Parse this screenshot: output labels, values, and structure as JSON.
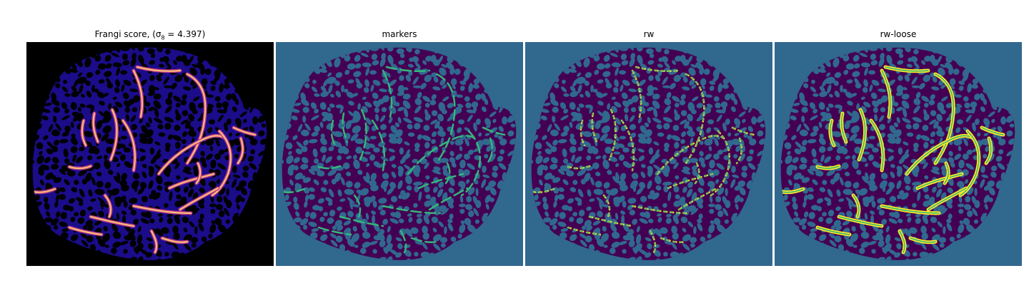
{
  "figure": {
    "panels": [
      {
        "title": "Frangi score, (σ",
        "title_sub": "8",
        "title_tail": " = 4.397)",
        "colormap": "magma"
      },
      {
        "title": "markers",
        "colormap": "viridis"
      },
      {
        "title": "rw",
        "colormap": "viridis"
      },
      {
        "title": "rw-loose",
        "colormap": "viridis"
      }
    ]
  },
  "colors": {
    "magma_background": "#000000",
    "magma_tissue": "#1b0c8a",
    "magma_holes": "#000000",
    "magma_vessel_mid": "#b93a8a",
    "magma_vessel_hot": "#fcc476",
    "viridis_background": "#31688e",
    "viridis_tissue": "#440154",
    "viridis_holes": "#31688e",
    "viridis_marker": "#35b779",
    "viridis_vessel": "#fde725"
  }
}
